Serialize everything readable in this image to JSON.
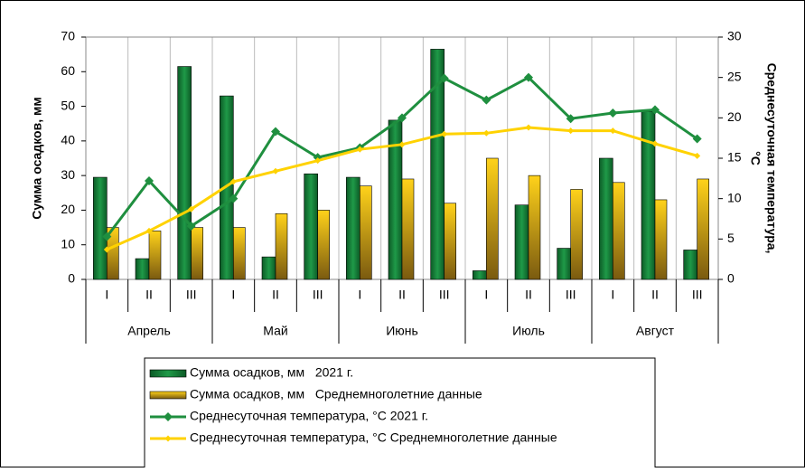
{
  "chart_data": {
    "type": "bar-line",
    "ylabel": "Сумма осадков, мм",
    "y2label": [
      "Среднесуточная температура,",
      "°С"
    ],
    "categories": [
      "I",
      "II",
      "III",
      "I",
      "II",
      "III",
      "I",
      "II",
      "III",
      "I",
      "II",
      "III",
      "I",
      "II",
      "III"
    ],
    "months": [
      "Апрель",
      "Май",
      "Июнь",
      "Июль",
      "Август"
    ],
    "ylim": [
      0,
      70
    ],
    "yticks": [
      0,
      10,
      20,
      30,
      40,
      50,
      60,
      70
    ],
    "y2lim": [
      0,
      30
    ],
    "y2ticks": [
      0,
      5,
      10,
      15,
      20,
      25,
      30
    ],
    "grid": true,
    "series": [
      {
        "name": "Сумма осадков, мм   2021 г.",
        "type": "bar",
        "color": "#17803a",
        "values": [
          29.5,
          6,
          61.5,
          53,
          6.5,
          30.5,
          29.5,
          46,
          66.5,
          2.5,
          21.5,
          9,
          35,
          48.5,
          8.5
        ]
      },
      {
        "name": "Сумма осадков, мм   Среднемноголетние данные",
        "type": "bar",
        "color": "#f2c200",
        "values": [
          15,
          14,
          15,
          15,
          19,
          20,
          27,
          29,
          22,
          35,
          30,
          26,
          28,
          23,
          29
        ]
      },
      {
        "name": "Среднесуточная температура, °С 2021 г.",
        "type": "line",
        "axis": "y2",
        "color": "#1f8f3f",
        "values": [
          5.3,
          12.2,
          6.6,
          10,
          18.3,
          15.1,
          16.3,
          20,
          24.9,
          22.2,
          25,
          19.9,
          20.6,
          21,
          17.4
        ]
      },
      {
        "name": "Среднесуточная температура, °С Среднемноголетние данные",
        "type": "line",
        "axis": "y2",
        "color": "#ffd200",
        "values": [
          3.7,
          6,
          8.7,
          12.1,
          13.4,
          14.7,
          16.1,
          16.7,
          18,
          18.1,
          18.8,
          18.4,
          18.4,
          16.8,
          15.3
        ]
      }
    ]
  }
}
